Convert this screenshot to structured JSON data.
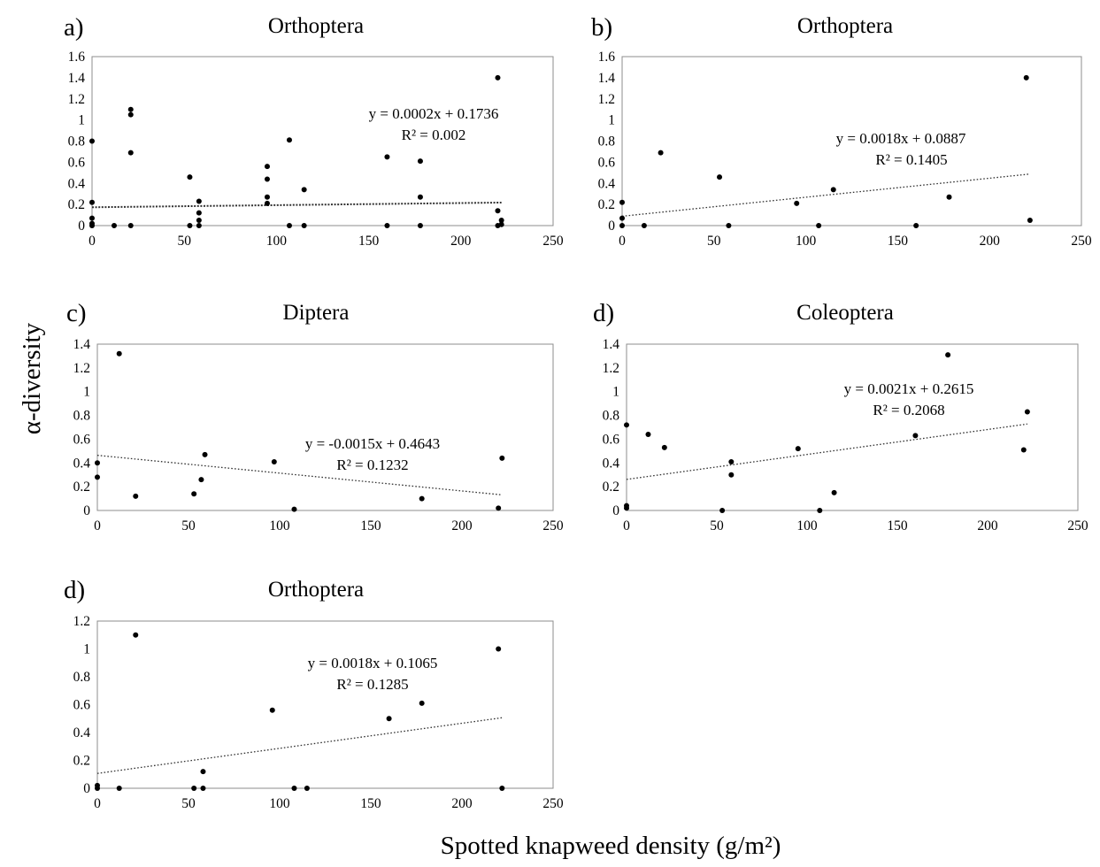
{
  "figure": {
    "xlabel": "Spotted knapweed density (g/m²)",
    "ylabel": "α-diversity"
  },
  "chart_data": [
    {
      "id": "a",
      "letter": "a)",
      "title": "Orthoptera",
      "type": "scatter",
      "xlim": [
        0,
        250
      ],
      "ylim": [
        0,
        1.6
      ],
      "xticks": [
        "0",
        "50",
        "100",
        "150",
        "200",
        "250"
      ],
      "yticks": [
        "0",
        "0.2",
        "0.4",
        "0.6",
        "0.8",
        "1",
        "1.2",
        "1.4",
        "1.6"
      ],
      "ytick_values": [
        0,
        0.2,
        0.4,
        0.6,
        0.8,
        1,
        1.2,
        1.4,
        1.6
      ],
      "points": [
        [
          0,
          0.8
        ],
        [
          0,
          0.22
        ],
        [
          0,
          0.07
        ],
        [
          0,
          0.02
        ],
        [
          0,
          0
        ],
        [
          12,
          0
        ],
        [
          21,
          1.1
        ],
        [
          21,
          1.05
        ],
        [
          21,
          0.69
        ],
        [
          21,
          0
        ],
        [
          53,
          0.46
        ],
        [
          53,
          0
        ],
        [
          58,
          0.23
        ],
        [
          58,
          0.12
        ],
        [
          58,
          0.05
        ],
        [
          58,
          0
        ],
        [
          95,
          0.56
        ],
        [
          95,
          0.44
        ],
        [
          95,
          0.27
        ],
        [
          95,
          0.21
        ],
        [
          107,
          0.81
        ],
        [
          107,
          0
        ],
        [
          115,
          0.34
        ],
        [
          115,
          0
        ],
        [
          160,
          0.65
        ],
        [
          160,
          0
        ],
        [
          178,
          0.61
        ],
        [
          178,
          0.27
        ],
        [
          178,
          0
        ],
        [
          220,
          1.4
        ],
        [
          220,
          0.14
        ],
        [
          220,
          0
        ],
        [
          222,
          0.05
        ],
        [
          222,
          0.01
        ]
      ],
      "trendline": {
        "slope": 0.0002,
        "intercept": 0.1736,
        "x_range": [
          0,
          222
        ],
        "style": "dense"
      },
      "equation": "y = 0.0002x  + 0.1736",
      "r2": "R² = 0.002"
    },
    {
      "id": "b",
      "letter": "b)",
      "title": "Orthoptera",
      "type": "scatter",
      "xlim": [
        0,
        250
      ],
      "ylim": [
        0,
        1.6
      ],
      "xticks": [
        "0",
        "50",
        "100",
        "150",
        "200",
        "250"
      ],
      "yticks": [
        "0",
        "0.2",
        "0.4",
        "0.6",
        "0.8",
        "1",
        "1.2",
        "1.4",
        "1.6"
      ],
      "ytick_values": [
        0,
        0.2,
        0.4,
        0.6,
        0.8,
        1,
        1.2,
        1.4,
        1.6
      ],
      "points": [
        [
          0,
          0.22
        ],
        [
          0,
          0.07
        ],
        [
          0,
          0
        ],
        [
          12,
          0
        ],
        [
          21,
          0.69
        ],
        [
          53,
          0.46
        ],
        [
          58,
          0
        ],
        [
          95,
          0.21
        ],
        [
          107,
          0
        ],
        [
          115,
          0.34
        ],
        [
          160,
          0
        ],
        [
          178,
          0.27
        ],
        [
          220,
          1.4
        ],
        [
          222,
          0.05
        ]
      ],
      "trendline": {
        "slope": 0.0018,
        "intercept": 0.0887,
        "x_range": [
          0,
          222
        ],
        "style": "sparse"
      },
      "equation": "y = 0.0018x + 0.0887",
      "r2": "R² = 0.1405"
    },
    {
      "id": "c",
      "letter": "c)",
      "title": "Diptera",
      "type": "scatter",
      "xlim": [
        0,
        250
      ],
      "ylim": [
        0,
        1.4
      ],
      "xticks": [
        "0",
        "50",
        "100",
        "150",
        "200",
        "250"
      ],
      "yticks": [
        "0",
        "0.2",
        "0.4",
        "0.6",
        "0.8",
        "1",
        "1.2",
        "1.4"
      ],
      "ytick_values": [
        0,
        0.2,
        0.4,
        0.6,
        0.8,
        1,
        1.2,
        1.4
      ],
      "points": [
        [
          0,
          0.4
        ],
        [
          0,
          0.28
        ],
        [
          12,
          1.32
        ],
        [
          21,
          0.12
        ],
        [
          53,
          0.14
        ],
        [
          57,
          0.26
        ],
        [
          59,
          0.47
        ],
        [
          97,
          0.41
        ],
        [
          108,
          0.01
        ],
        [
          178,
          0.1
        ],
        [
          220,
          0.02
        ],
        [
          222,
          0.44
        ]
      ],
      "trendline": {
        "slope": -0.0015,
        "intercept": 0.4643,
        "x_range": [
          0,
          222
        ],
        "style": "sparse"
      },
      "equation": "y = -0.0015x + 0.4643",
      "r2": "R² = 0.1232"
    },
    {
      "id": "d",
      "letter": "d)",
      "title": "Coleoptera",
      "type": "scatter",
      "xlim": [
        0,
        250
      ],
      "ylim": [
        0,
        1.4
      ],
      "xticks": [
        "0",
        "50",
        "100",
        "150",
        "200",
        "250"
      ],
      "yticks": [
        "0",
        "0.2",
        "0.4",
        "0.6",
        "0.8",
        "1",
        "1.2",
        "1.4"
      ],
      "ytick_values": [
        0,
        0.2,
        0.4,
        0.6,
        0.8,
        1,
        1.2,
        1.4
      ],
      "points": [
        [
          0,
          0.72
        ],
        [
          0,
          0.04
        ],
        [
          0,
          0.02
        ],
        [
          12,
          0.64
        ],
        [
          21,
          0.53
        ],
        [
          53,
          0
        ],
        [
          58,
          0.41
        ],
        [
          58,
          0.3
        ],
        [
          95,
          0.52
        ],
        [
          107,
          0
        ],
        [
          115,
          0.15
        ],
        [
          160,
          0.63
        ],
        [
          178,
          1.31
        ],
        [
          220,
          0.51
        ],
        [
          222,
          0.83
        ]
      ],
      "trendline": {
        "slope": 0.0021,
        "intercept": 0.2615,
        "x_range": [
          0,
          222
        ],
        "style": "sparse"
      },
      "equation": "y = 0.0021x + 0.2615",
      "r2": "R² = 0.2068"
    },
    {
      "id": "e",
      "letter": "d)",
      "title": "Orthoptera",
      "type": "scatter",
      "xlim": [
        0,
        250
      ],
      "ylim": [
        0,
        1.2
      ],
      "xticks": [
        "0",
        "50",
        "100",
        "150",
        "200",
        "250"
      ],
      "yticks": [
        "0",
        "0.2",
        "0.4",
        "0.6",
        "0.8",
        "1",
        "1.2"
      ],
      "ytick_values": [
        0,
        0.2,
        0.4,
        0.6,
        0.8,
        1,
        1.2
      ],
      "points": [
        [
          0,
          0.02
        ],
        [
          0,
          0
        ],
        [
          12,
          0
        ],
        [
          21,
          1.1
        ],
        [
          53,
          0
        ],
        [
          58,
          0.12
        ],
        [
          58,
          0
        ],
        [
          96,
          0.56
        ],
        [
          108,
          0
        ],
        [
          115,
          0
        ],
        [
          160,
          0.5
        ],
        [
          178,
          0.61
        ],
        [
          220,
          1
        ],
        [
          222,
          0
        ]
      ],
      "trendline": {
        "slope": 0.0018,
        "intercept": 0.1065,
        "x_range": [
          0,
          222
        ],
        "style": "sparse"
      },
      "equation": "y = 0.0018x + 0.1065",
      "r2": "R² = 0.1285"
    }
  ]
}
